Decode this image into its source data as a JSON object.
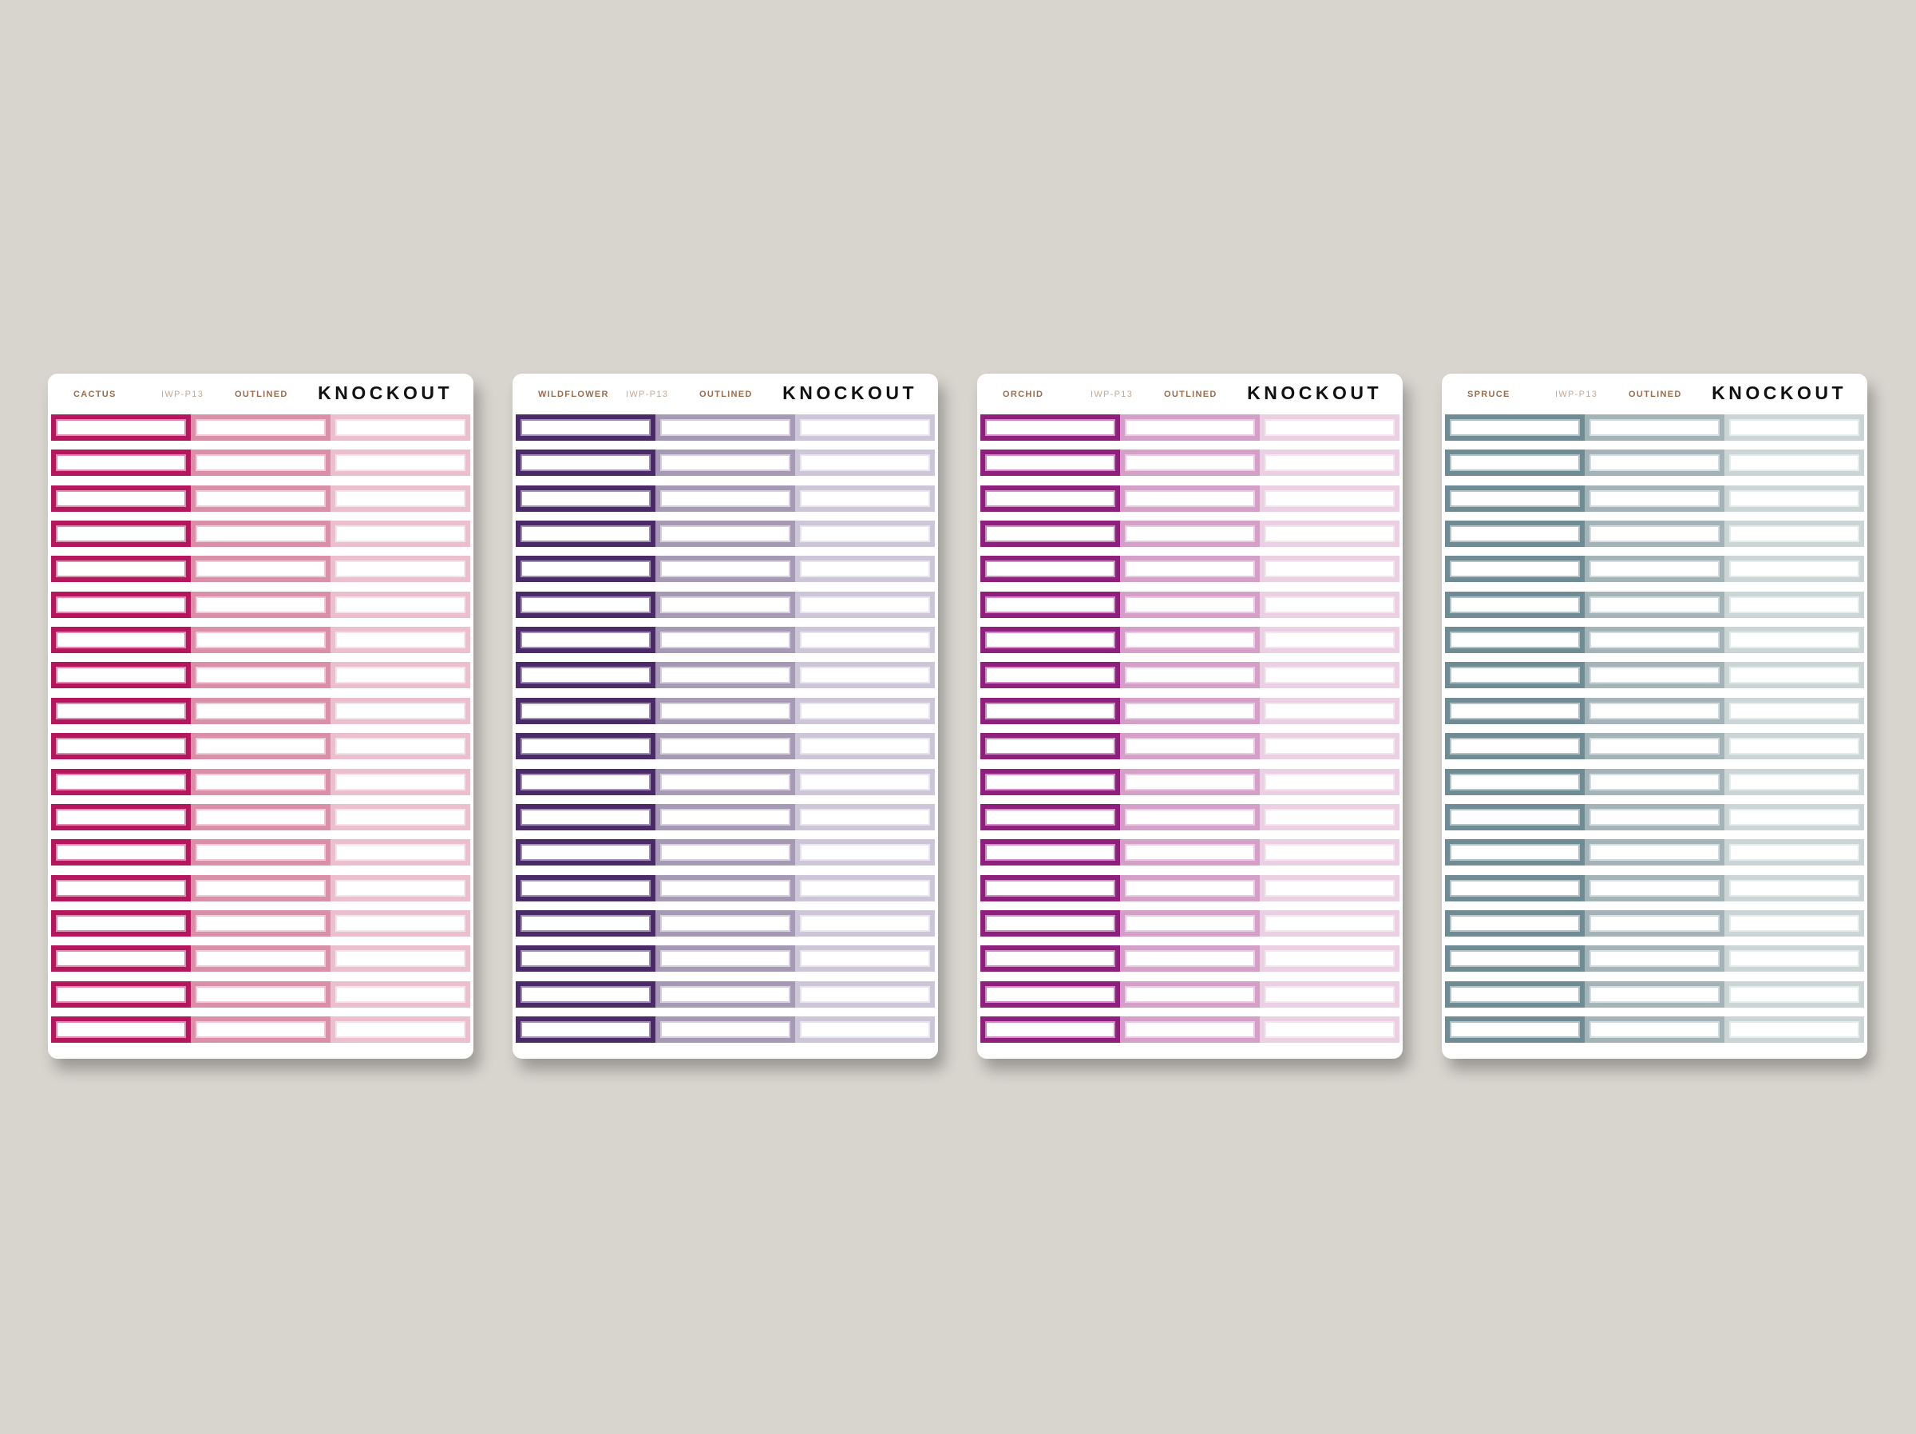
{
  "brand": "KNOCKOUT",
  "sheets": [
    {
      "color_name": "CACTUS",
      "code": "IWP-P13",
      "style": "OUTLINED",
      "colors": [
        "#b5175f",
        "#d98fa7",
        "#ebbfcd"
      ],
      "inner_borders": [
        "#e38ab0",
        "#efcad6",
        "#f6e3ea"
      ]
    },
    {
      "color_name": "WILDFLOWER",
      "code": "IWP-P13",
      "style": "OUTLINED",
      "colors": [
        "#4b2a68",
        "#a699b4",
        "#cdc6d8"
      ],
      "inner_borders": [
        "#a08fb8",
        "#d6cfde",
        "#e9e5ef"
      ]
    },
    {
      "color_name": "ORCHID",
      "code": "IWP-P13",
      "style": "OUTLINED",
      "colors": [
        "#8f1f7c",
        "#d4a0c8",
        "#ebd0e3"
      ],
      "inner_borders": [
        "#d08cc4",
        "#e8cbe1",
        "#f4e5ef"
      ]
    },
    {
      "color_name": "SPRUCE",
      "code": "IWP-P13",
      "style": "OUTLINED",
      "colors": [
        "#6f8b93",
        "#a3b3b8",
        "#cbd5d6"
      ],
      "inner_borders": [
        "#b3c3c8",
        "#d3dcde",
        "#e6ecec"
      ]
    }
  ],
  "rows_per_sheet": 18
}
